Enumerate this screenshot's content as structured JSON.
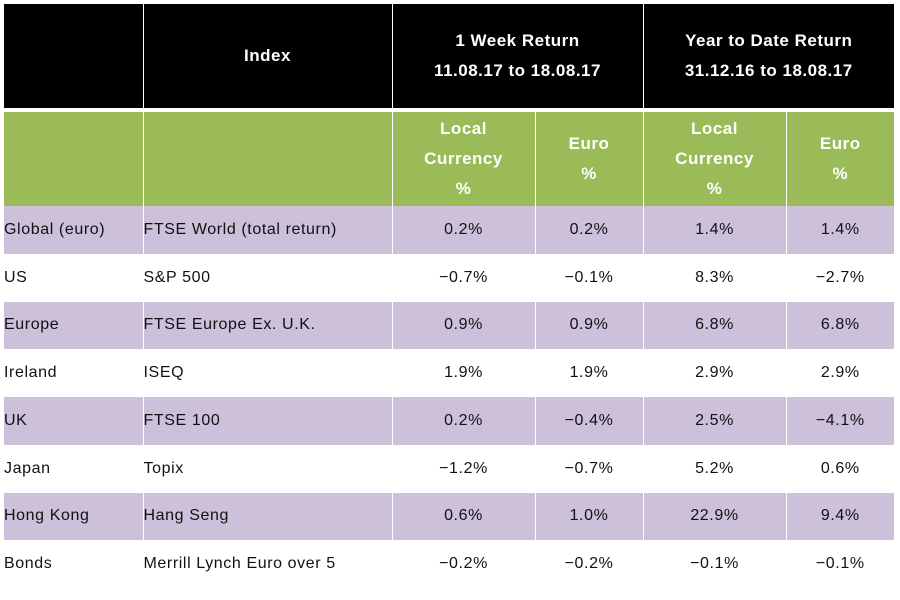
{
  "header": {
    "blank": "",
    "index": "Index",
    "week_title": "1 Week Return",
    "week_range": "11.08.17 to 18.08.17",
    "ytd_title": "Year to Date Return",
    "ytd_range": "31.12.16 to 18.08.17"
  },
  "subheader": {
    "local_line1": "Local",
    "local_line2": "Currency",
    "local_line3": "%",
    "euro_line1": "Euro",
    "euro_line2": "%"
  },
  "rows": [
    {
      "region": "Global (euro)",
      "index": "FTSE World (total return)",
      "week_local": "0.2%",
      "week_euro": "0.2%",
      "ytd_local": "1.4%",
      "ytd_euro": "1.4%"
    },
    {
      "region": "US",
      "index": "S&P 500",
      "week_local": "−0.7%",
      "week_euro": "−0.1%",
      "ytd_local": "8.3%",
      "ytd_euro": "−2.7%"
    },
    {
      "region": "Europe",
      "index": "FTSE Europe Ex. U.K.",
      "week_local": "0.9%",
      "week_euro": "0.9%",
      "ytd_local": "6.8%",
      "ytd_euro": "6.8%"
    },
    {
      "region": "Ireland",
      "index": "ISEQ",
      "week_local": "1.9%",
      "week_euro": "1.9%",
      "ytd_local": "2.9%",
      "ytd_euro": "2.9%"
    },
    {
      "region": "UK",
      "index": "FTSE 100",
      "week_local": "0.2%",
      "week_euro": "−0.4%",
      "ytd_local": "2.5%",
      "ytd_euro": "−4.1%"
    },
    {
      "region": "Japan",
      "index": "Topix",
      "week_local": "−1.2%",
      "week_euro": "−0.7%",
      "ytd_local": "5.2%",
      "ytd_euro": "0.6%"
    },
    {
      "region": "Hong Kong",
      "index": "Hang Seng",
      "week_local": "0.6%",
      "week_euro": "1.0%",
      "ytd_local": "22.9%",
      "ytd_euro": "9.4%"
    },
    {
      "region": "Bonds",
      "index": "Merrill Lynch Euro over 5",
      "week_local": "−0.2%",
      "week_euro": "−0.2%",
      "ytd_local": "−0.1%",
      "ytd_euro": "−0.1%"
    }
  ],
  "colors": {
    "header_black": "#000000",
    "header_green": "#9bbb59",
    "row_shade": "#ccc0da"
  }
}
